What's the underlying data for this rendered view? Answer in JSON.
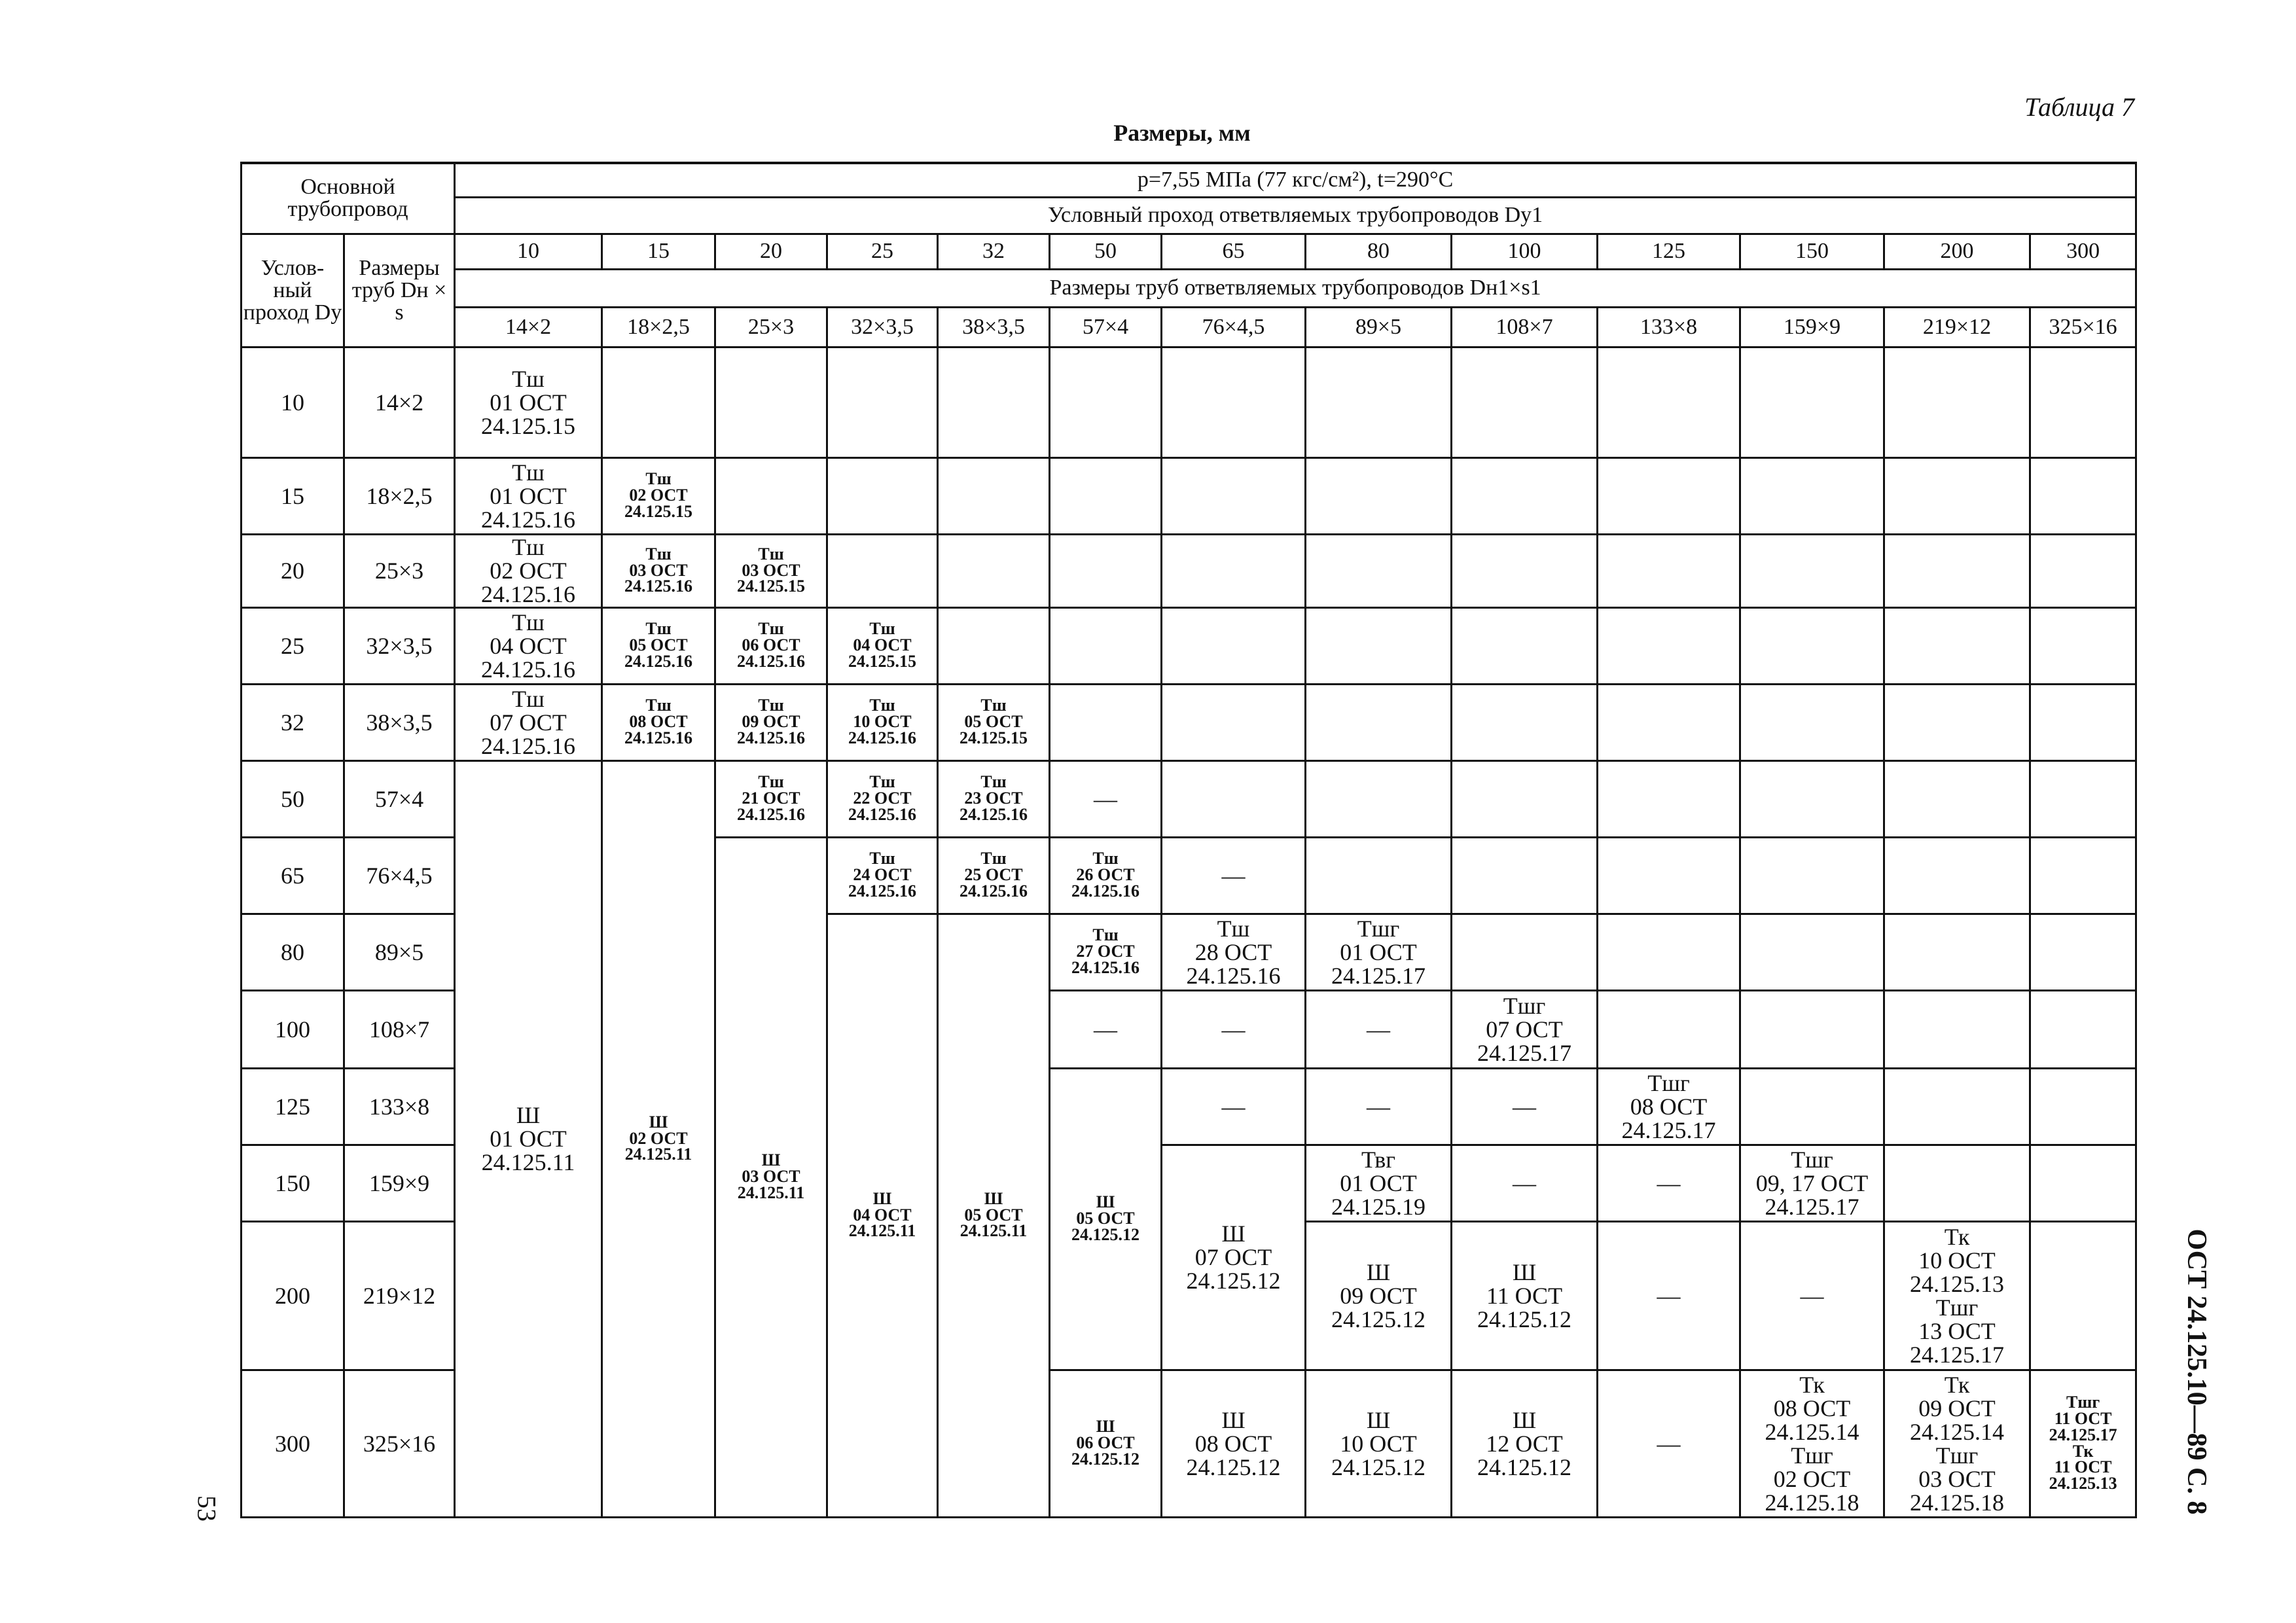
{
  "table_label": "Таблица 7",
  "units": "Размеры, мм",
  "side_text": "ОСТ 24.125.10—89 С. 8",
  "page_number": "53",
  "header": {
    "main": "Основной трубопровод",
    "dy": "Услов-ный проход Dу",
    "size": "Размеры труб Dн × s",
    "conditions": "p=7,55 МПа (77 кгс/см²), t=290°C",
    "branch_dy": "Условный проход ответвляемых трубопроводов Dу1",
    "branch_size": "Размеры труб ответвляемых трубопроводов Dн1×s1"
  },
  "branch_columns": [
    {
      "dy": "10",
      "size": "14×2"
    },
    {
      "dy": "15",
      "size": "18×2,5"
    },
    {
      "dy": "20",
      "size": "25×3"
    },
    {
      "dy": "25",
      "size": "32×3,5"
    },
    {
      "dy": "32",
      "size": "38×3,5"
    },
    {
      "dy": "50",
      "size": "57×4"
    },
    {
      "dy": "65",
      "size": "76×4,5"
    },
    {
      "dy": "80",
      "size": "89×5"
    },
    {
      "dy": "100",
      "size": "108×7"
    },
    {
      "dy": "125",
      "size": "133×8"
    },
    {
      "dy": "150",
      "size": "159×9"
    },
    {
      "dy": "200",
      "size": "219×12"
    },
    {
      "dy": "300",
      "size": "325×16"
    }
  ],
  "rows": [
    {
      "dy": "10",
      "size": "14×2",
      "cells": [
        {
          "col": 0,
          "lines": [
            "Тш",
            "01 ОСТ",
            "24.125.15"
          ]
        }
      ]
    },
    {
      "dy": "15",
      "size": "18×2,5",
      "cells": [
        {
          "col": 0,
          "lines": [
            "Тш",
            "01 ОСТ",
            "24.125.16"
          ]
        },
        {
          "col": 1,
          "lines": [
            "Тш",
            "02 ОСТ",
            "24.125.15"
          ]
        }
      ]
    },
    {
      "dy": "20",
      "size": "25×3",
      "cells": [
        {
          "col": 0,
          "lines": [
            "Тш",
            "02 ОСТ",
            "24.125.16"
          ]
        },
        {
          "col": 1,
          "lines": [
            "Тш",
            "03 ОСТ",
            "24.125.16"
          ]
        },
        {
          "col": 2,
          "lines": [
            "Тш",
            "03 ОСТ",
            "24.125.15"
          ]
        }
      ]
    },
    {
      "dy": "25",
      "size": "32×3,5",
      "cells": [
        {
          "col": 0,
          "lines": [
            "Тш",
            "04 ОСТ",
            "24.125.16"
          ]
        },
        {
          "col": 1,
          "lines": [
            "Тш",
            "05 ОСТ",
            "24.125.16"
          ]
        },
        {
          "col": 2,
          "lines": [
            "Тш",
            "06 ОСТ",
            "24.125.16"
          ]
        },
        {
          "col": 3,
          "lines": [
            "Тш",
            "04 ОСТ",
            "24.125.15"
          ]
        }
      ]
    },
    {
      "dy": "32",
      "size": "38×3,5",
      "cells": [
        {
          "col": 0,
          "lines": [
            "Тш",
            "07 ОСТ",
            "24.125.16"
          ]
        },
        {
          "col": 1,
          "lines": [
            "Тш",
            "08 ОСТ",
            "24.125.16"
          ]
        },
        {
          "col": 2,
          "lines": [
            "Тш",
            "09 ОСТ",
            "24.125.16"
          ]
        },
        {
          "col": 3,
          "lines": [
            "Тш",
            "10 ОСТ",
            "24.125.16"
          ]
        },
        {
          "col": 4,
          "lines": [
            "Тш",
            "05 ОСТ",
            "24.125.15"
          ]
        }
      ]
    },
    {
      "dy": "50",
      "size": "57×4",
      "cells": [
        {
          "col": 0,
          "rowspan": 8,
          "lines": [
            "Ш",
            "01 ОСТ",
            "24.125.11"
          ]
        },
        {
          "col": 1,
          "rowspan": 8,
          "lines": [
            "Ш",
            "02 ОСТ",
            "24.125.11"
          ]
        },
        {
          "col": 2,
          "lines": [
            "Тш",
            "21 ОСТ",
            "24.125.16"
          ]
        },
        {
          "col": 3,
          "lines": [
            "Тш",
            "22 ОСТ",
            "24.125.16"
          ]
        },
        {
          "col": 4,
          "lines": [
            "Тш",
            "23 ОСТ",
            "24.125.16"
          ]
        },
        {
          "col": 5,
          "lines": [
            "—"
          ]
        }
      ]
    },
    {
      "dy": "65",
      "size": "76×4,5",
      "cells": [
        {
          "col": 2,
          "rowspan": 7,
          "lines": [
            "Ш",
            "03 ОСТ",
            "24.125.11"
          ]
        },
        {
          "col": 3,
          "lines": [
            "Тш",
            "24 ОСТ",
            "24.125.16"
          ]
        },
        {
          "col": 4,
          "lines": [
            "Тш",
            "25 ОСТ",
            "24.125.16"
          ]
        },
        {
          "col": 5,
          "lines": [
            "Тш",
            "26 ОСТ",
            "24.125.16"
          ]
        },
        {
          "col": 6,
          "lines": [
            "—"
          ]
        }
      ]
    },
    {
      "dy": "80",
      "size": "89×5",
      "cells": [
        {
          "col": 3,
          "rowspan": 6,
          "lines": [
            "Ш",
            "04 ОСТ",
            "24.125.11"
          ]
        },
        {
          "col": 4,
          "rowspan": 6,
          "lines": [
            "Ш",
            "05 ОСТ",
            "24.125.11"
          ]
        },
        {
          "col": 5,
          "lines": [
            "Тш",
            "27 ОСТ",
            "24.125.16"
          ]
        },
        {
          "col": 6,
          "lines": [
            "Тш",
            "28 ОСТ",
            "24.125.16"
          ]
        },
        {
          "col": 7,
          "lines": [
            "Тшг",
            "01 ОСТ",
            "24.125.17"
          ]
        }
      ]
    },
    {
      "dy": "100",
      "size": "108×7",
      "cells": [
        {
          "col": 5,
          "lines": [
            "—"
          ]
        },
        {
          "col": 6,
          "lines": [
            "—"
          ]
        },
        {
          "col": 7,
          "lines": [
            "—"
          ]
        },
        {
          "col": 8,
          "lines": [
            "Тшг",
            "07 ОСТ",
            "24.125.17"
          ]
        }
      ]
    },
    {
      "dy": "125",
      "size": "133×8",
      "cells": [
        {
          "col": 5,
          "rowspan": 3,
          "lines": [
            "Ш",
            "05 ОСТ",
            "24.125.12"
          ]
        },
        {
          "col": 6,
          "lines": [
            "—"
          ]
        },
        {
          "col": 7,
          "lines": [
            "—"
          ]
        },
        {
          "col": 8,
          "lines": [
            "—"
          ]
        },
        {
          "col": 9,
          "lines": [
            "Тшг",
            "08 ОСТ",
            "24.125.17"
          ]
        }
      ]
    },
    {
      "dy": "150",
      "size": "159×9",
      "cells": [
        {
          "col": 6,
          "rowspan": 2,
          "lines": [
            "Ш",
            "07 ОСТ",
            "24.125.12"
          ]
        },
        {
          "col": 7,
          "lines": [
            "Твг",
            "01 ОСТ",
            "24.125.19"
          ]
        },
        {
          "col": 8,
          "lines": [
            "—"
          ]
        },
        {
          "col": 9,
          "lines": [
            "—"
          ]
        },
        {
          "col": 10,
          "lines": [
            "Тшг",
            "09, 17 ОСТ",
            "24.125.17"
          ]
        }
      ]
    },
    {
      "dy": "200",
      "size": "219×12",
      "cells": [
        {
          "col": 7,
          "lines": [
            "Ш",
            "09 ОСТ",
            "24.125.12"
          ]
        },
        {
          "col": 8,
          "lines": [
            "Ш",
            "11 ОСТ",
            "24.125.12"
          ]
        },
        {
          "col": 9,
          "lines": [
            "—"
          ]
        },
        {
          "col": 10,
          "lines": [
            "—"
          ]
        },
        {
          "col": 11,
          "lines": [
            "Тк",
            "10 ОСТ",
            "24.125.13",
            "Тшг",
            "13 ОСТ",
            "24.125.17"
          ]
        }
      ]
    },
    {
      "dy": "300",
      "size": "325×16",
      "cells": [
        {
          "col": 5,
          "lines": [
            "Ш",
            "06 ОСТ",
            "24.125.12"
          ]
        },
        {
          "col": 6,
          "lines": [
            "Ш",
            "08 ОСТ",
            "24.125.12"
          ]
        },
        {
          "col": 7,
          "lines": [
            "Ш",
            "10 ОСТ",
            "24.125.12"
          ]
        },
        {
          "col": 8,
          "lines": [
            "Ш",
            "12 ОСТ",
            "24.125.12"
          ]
        },
        {
          "col": 9,
          "lines": [
            "—"
          ]
        },
        {
          "col": 10,
          "lines": [
            "Тк",
            "08 ОСТ",
            "24.125.14",
            "Тшг",
            "02 ОСТ",
            "24.125.18"
          ]
        },
        {
          "col": 11,
          "lines": [
            "Тк",
            "09 ОСТ",
            "24.125.14",
            "Тшг",
            "03 ОСТ",
            "24.125.18"
          ]
        },
        {
          "col": 12,
          "lines": [
            "Тшг",
            "11 ОСТ",
            "24.125.17",
            "Тк",
            "11 ОСТ",
            "24.125.13"
          ]
        }
      ]
    }
  ]
}
